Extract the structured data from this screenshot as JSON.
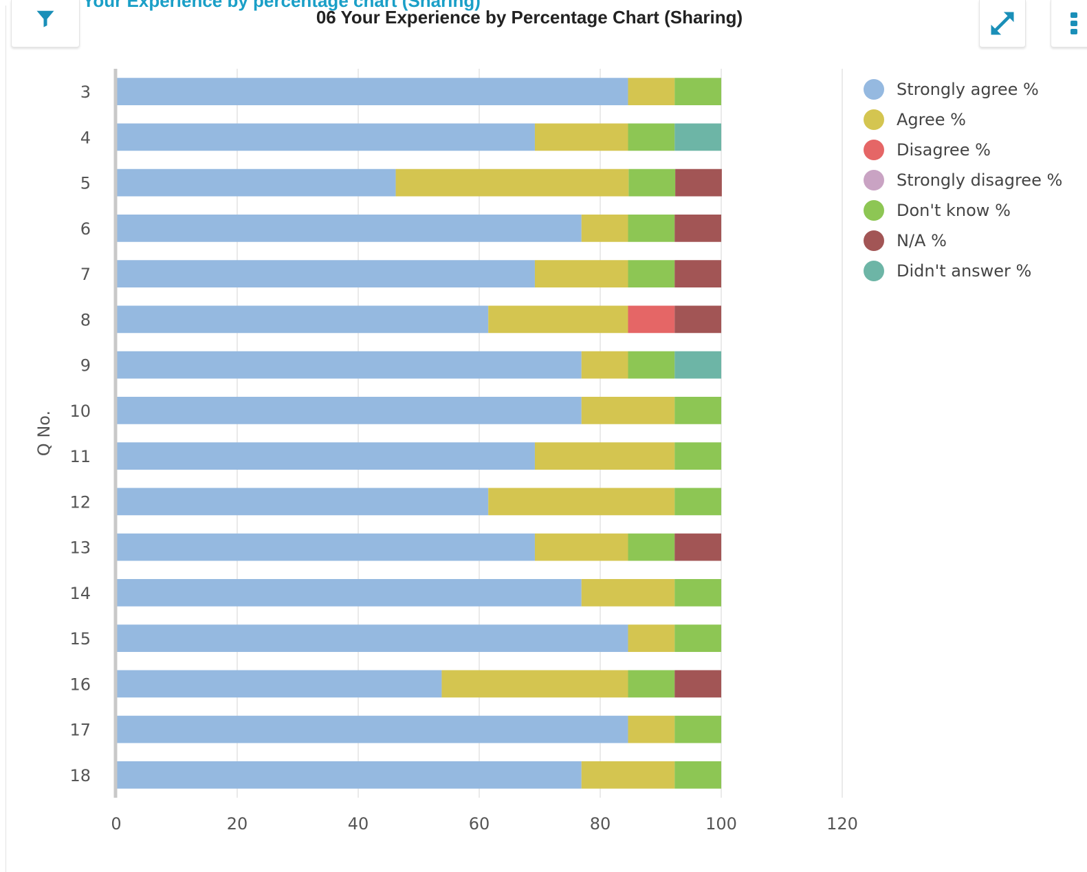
{
  "header": {
    "partial_title": "Your Experience by percentage chart (Sharing)",
    "chart_title": "06 Your Experience by Percentage Chart (Sharing)"
  },
  "toolbar": {
    "filter_icon": "filter-icon",
    "expand_icon": "expand-icon",
    "more_icon": "more-vertical-icon",
    "accent_color": "#1a8fb8"
  },
  "chart_data": {
    "type": "bar",
    "orientation": "horizontal",
    "stacked": true,
    "title": "06 Your Experience by Percentage Chart (Sharing)",
    "ylabel": "Q No.",
    "xlabel": "",
    "xlim": [
      0,
      120
    ],
    "xticks": [
      "0",
      "20",
      "40",
      "60",
      "80",
      "100",
      "120"
    ],
    "grid": true,
    "legend_position": "right",
    "categories": [
      "3",
      "4",
      "5",
      "6",
      "7",
      "8",
      "9",
      "10",
      "11",
      "12",
      "13",
      "14",
      "15",
      "16",
      "17",
      "18"
    ],
    "series": [
      {
        "name": "Strongly agree %",
        "color": "#95b9e0",
        "values": [
          84.6,
          69.2,
          46.2,
          76.9,
          69.2,
          61.5,
          76.9,
          76.9,
          69.2,
          61.5,
          69.2,
          76.9,
          84.6,
          53.8,
          84.6,
          76.9
        ]
      },
      {
        "name": "Agree %",
        "color": "#d4c550",
        "values": [
          7.7,
          15.4,
          38.5,
          7.7,
          15.4,
          23.1,
          7.7,
          15.4,
          23.1,
          30.8,
          15.4,
          15.4,
          7.7,
          30.8,
          7.7,
          15.4
        ]
      },
      {
        "name": "Disagree %",
        "color": "#e56666",
        "values": [
          0,
          0,
          0,
          0,
          0,
          7.7,
          0,
          0,
          0,
          0,
          0,
          0,
          0,
          0,
          0,
          0
        ]
      },
      {
        "name": "Strongly disagree %",
        "color": "#c9a3c3",
        "values": [
          0,
          0,
          0,
          0,
          0,
          0,
          0,
          0,
          0,
          0,
          0,
          0,
          0,
          0,
          0,
          0
        ]
      },
      {
        "name": "Don't know %",
        "color": "#8dc654",
        "values": [
          7.7,
          7.7,
          7.7,
          7.7,
          7.7,
          0,
          7.7,
          7.7,
          7.7,
          7.7,
          7.7,
          7.7,
          7.7,
          7.7,
          7.7,
          7.7
        ]
      },
      {
        "name": "N/A %",
        "color": "#a25555",
        "values": [
          0,
          0,
          7.7,
          7.7,
          7.7,
          7.7,
          0,
          0,
          0,
          0,
          7.7,
          0,
          0,
          7.7,
          0,
          0
        ]
      },
      {
        "name": "Didn't answer %",
        "color": "#6db5a6",
        "values": [
          0,
          7.7,
          0,
          0,
          0,
          0,
          7.7,
          0,
          0,
          0,
          0,
          0,
          0,
          0,
          0,
          0
        ]
      }
    ]
  }
}
